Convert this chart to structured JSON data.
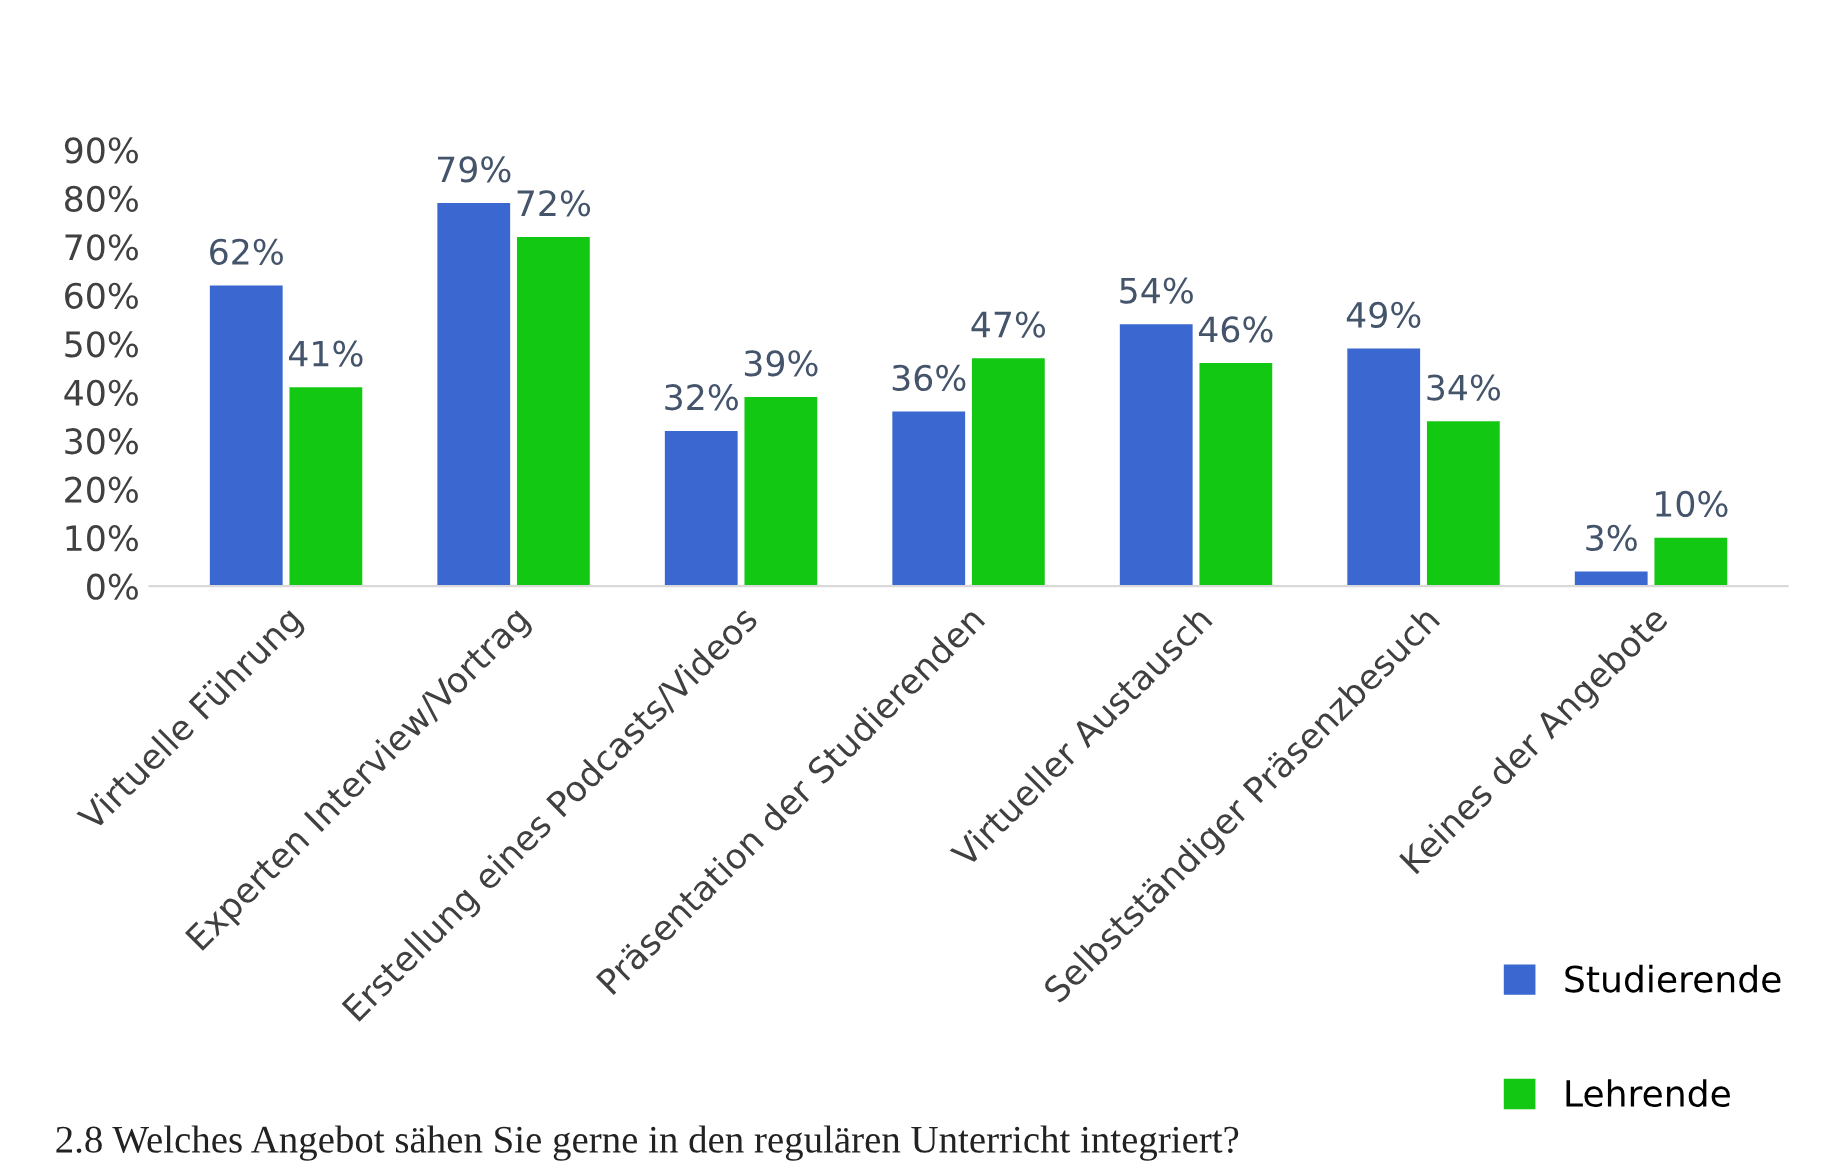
{
  "chart_data": {
    "type": "bar",
    "categories": [
      "Virtuelle Führung",
      "Experten Interview/Vortrag",
      "Erstellung eines Podcasts/Videos",
      "Präsentation der Studierenden",
      "Virtueller Austausch",
      "Selbstständiger Präsenzbesuch",
      "Keines der Angebote"
    ],
    "series": [
      {
        "name": "Studierende",
        "color": "#3a67d0",
        "values": [
          62,
          79,
          32,
          36,
          54,
          49,
          3
        ],
        "value_labels": [
          "62%",
          "79%",
          "32%",
          "36%",
          "54%",
          "49%",
          "3%"
        ]
      },
      {
        "name": "Lehrende",
        "color": "#12c812",
        "values": [
          41,
          72,
          39,
          47,
          46,
          34,
          10
        ],
        "value_labels": [
          "41%",
          "72%",
          "39%",
          "47%",
          "46%",
          "34%",
          "10%"
        ]
      }
    ],
    "ylim": [
      0,
      90
    ],
    "yticks": [
      {
        "value": 0,
        "label": "0%"
      },
      {
        "value": 10,
        "label": "10%"
      },
      {
        "value": 20,
        "label": "20%"
      },
      {
        "value": 30,
        "label": "30%"
      },
      {
        "value": 40,
        "label": "40%"
      },
      {
        "value": 50,
        "label": "50%"
      },
      {
        "value": 60,
        "label": "60%"
      },
      {
        "value": 70,
        "label": "70%"
      },
      {
        "value": 80,
        "label": "80%"
      },
      {
        "value": 90,
        "label": "90%"
      }
    ],
    "grid": false,
    "legend": "bottom right",
    "annotations": [
      "2.8 Welches Angebot sähen Sie gerne in den regulären Unterricht integriert?"
    ]
  }
}
